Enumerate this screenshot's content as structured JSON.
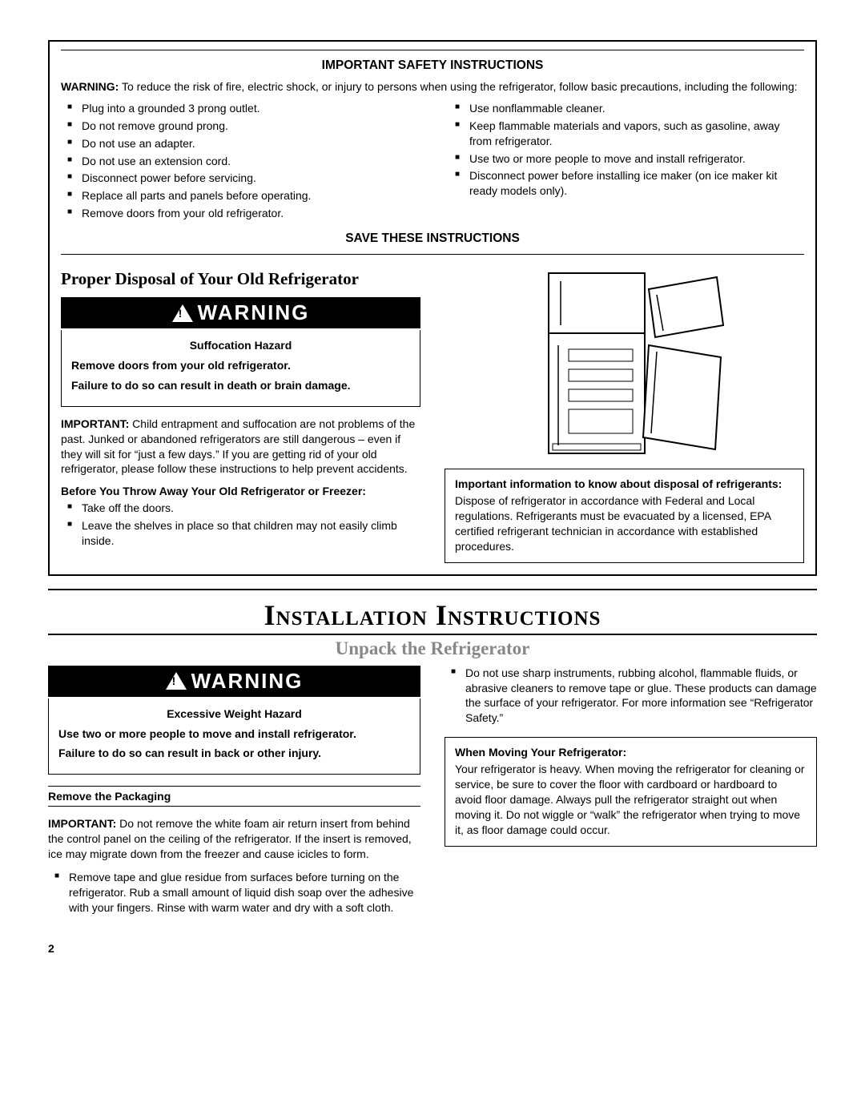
{
  "safety": {
    "title": "IMPORTANT SAFETY INSTRUCTIONS",
    "intro_label": "WARNING:",
    "intro_text": "To reduce the risk of fire, electric shock, or injury to persons when using the refrigerator, follow basic precautions, including the following:",
    "left_bullets": [
      "Plug into a grounded 3 prong outlet.",
      "Do not remove ground prong.",
      "Do not use an adapter.",
      "Do not use an extension cord.",
      "Disconnect power before servicing.",
      "Replace all parts and panels before operating.",
      "Remove doors from your old refrigerator."
    ],
    "right_bullets": [
      "Use nonflammable cleaner.",
      "Keep flammable materials and vapors, such as gasoline, away from refrigerator.",
      "Use two or more people to move and install refrigerator.",
      "Disconnect power before installing ice maker (on ice maker kit ready models only)."
    ],
    "save_title": "SAVE THESE INSTRUCTIONS"
  },
  "disposal": {
    "heading": "Proper Disposal of Your Old Refrigerator",
    "banner": "WARNING",
    "hazard_title": "Suffocation Hazard",
    "hazard_line1": "Remove doors from your old refrigerator.",
    "hazard_line2": "Failure to do so can result in death or brain damage.",
    "important_label": "IMPORTANT:",
    "important_text": " Child entrapment and suffocation are not problems of the past. Junked or abandoned refrigerators are still dangerous – even if they will sit for “just a few days.” If you are getting rid of your old refrigerator, please follow these instructions to help prevent accidents.",
    "before_heading": "Before You Throw Away Your Old Refrigerator or Freezer:",
    "before_bullets": [
      "Take off the doors.",
      "Leave the shelves in place so that children may not easily climb inside."
    ],
    "infobox_head": "Important information to know about disposal of refrigerants:",
    "infobox_text": "Dispose of refrigerator in accordance with Federal and Local regulations. Refrigerants must be evacuated by a licensed, EPA certified refrigerant technician in accordance with established procedures."
  },
  "install": {
    "title": "Installation Instructions",
    "unpack_title": "Unpack the Refrigerator",
    "banner": "WARNING",
    "hazard_title": "Excessive Weight Hazard",
    "hazard_line1": "Use two or more people to move and install refrigerator.",
    "hazard_line2": "Failure to do so can result in back or other injury.",
    "remove_heading": "Remove the Packaging",
    "important_label": "IMPORTANT:",
    "important_text": " Do not remove the white foam air return insert from behind the control panel on the ceiling of the refrigerator. If the insert is removed, ice may migrate down from the freezer and cause icicles to form.",
    "left_bullets": [
      "Remove tape and glue residue from surfaces before turning on the refrigerator. Rub a small amount of liquid dish soap over the adhesive with your fingers. Rinse with warm water and dry with a soft cloth."
    ],
    "right_bullets": [
      "Do not use sharp instruments, rubbing alcohol, flammable fluids, or abrasive cleaners to remove tape or glue. These products can damage the surface of your refrigerator. For more information see “Refrigerator Safety.”"
    ],
    "moving_head": "When Moving Your Refrigerator:",
    "moving_text": "Your refrigerator is heavy. When moving the refrigerator for cleaning or service, be sure to cover the floor with cardboard or hardboard to avoid floor damage. Always pull the refrigerator straight out when moving it. Do not wiggle or “walk” the refrigerator when trying to move it, as floor damage could occur."
  },
  "page_number": "2"
}
